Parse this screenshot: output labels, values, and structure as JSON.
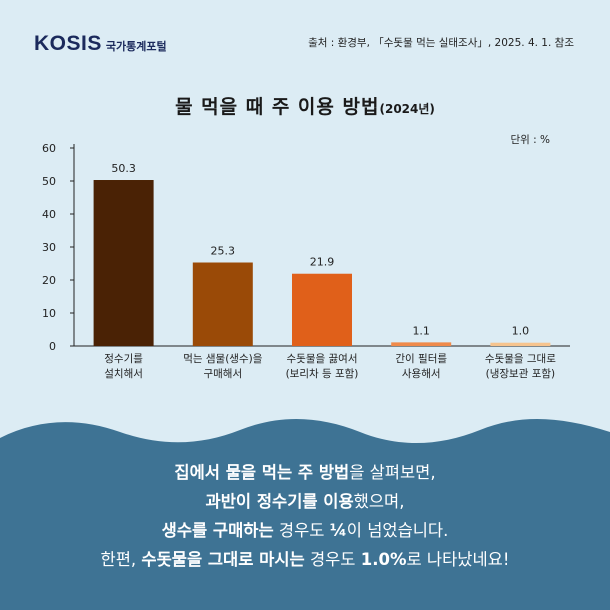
{
  "header": {
    "logo_text": "KOSIS",
    "logo_sub": "국가통계포털",
    "source": "출처 : 환경부, 「수돗물 먹는 실태조사」, 2025. 4. 1. 참조"
  },
  "title": {
    "main": "물 먹을 때 주 이용 방법",
    "year": "(2024년)"
  },
  "unit_label": "단위 : %",
  "chart_data": {
    "type": "bar",
    "categories": [
      [
        "정수기를",
        "설치해서"
      ],
      [
        "먹는 샘물(생수)을",
        "구매해서"
      ],
      [
        "수돗물을 끓여서",
        "(보리차 등 포함)"
      ],
      [
        "간이 필터를",
        "사용해서"
      ],
      [
        "수돗물을 그대로",
        "(냉장보관 포함)"
      ]
    ],
    "values": [
      50.3,
      25.3,
      21.9,
      1.1,
      1.0
    ],
    "value_labels": [
      "50.3",
      "25.3",
      "21.9",
      "1.1",
      "1.0"
    ],
    "colors": [
      "#4a2205",
      "#9a4a07",
      "#e0601a",
      "#f08a4a",
      "#f6c48e"
    ],
    "ylim": [
      0,
      60
    ],
    "yticks": [
      0,
      10,
      20,
      30,
      40,
      50,
      60
    ],
    "grid": false
  },
  "caption": {
    "lines": [
      [
        {
          "t": "집에서 물을 먹는 주 방법",
          "b": true
        },
        {
          "t": "을 살펴보면,",
          "b": false
        }
      ],
      [
        {
          "t": "과반이 정수기를 이용",
          "b": true
        },
        {
          "t": "했으며,",
          "b": false
        }
      ],
      [
        {
          "t": "생수를 구매하는",
          "b": true
        },
        {
          "t": " 경우도 ",
          "b": false
        },
        {
          "t": "¼",
          "b": true
        },
        {
          "t": "이 넘었습니다.",
          "b": false
        }
      ],
      [
        {
          "t": "한편, ",
          "b": false
        },
        {
          "t": "수돗물을 그대로 마시는",
          "b": true
        },
        {
          "t": " 경우도 ",
          "b": false
        },
        {
          "t": "1.0%",
          "b": true
        },
        {
          "t": "로 나타났네요!",
          "b": false
        }
      ]
    ]
  }
}
